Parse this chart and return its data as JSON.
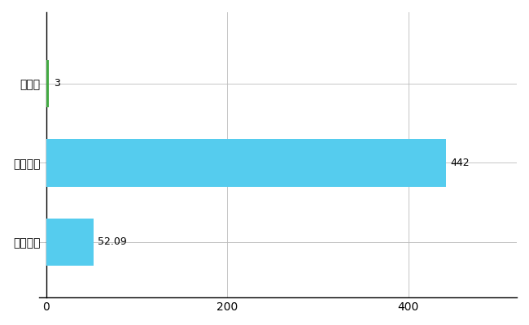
{
  "categories": [
    "全国平均",
    "全国最大",
    "秋田県"
  ],
  "values": [
    52.09,
    442,
    3
  ],
  "bar_colors": [
    "#55CCEE",
    "#55CCEE",
    "#44AA44"
  ],
  "bar_labels": [
    "52.09",
    "442",
    "3"
  ],
  "xlim": [
    -8,
    520
  ],
  "ylim": [
    -0.7,
    2.9
  ],
  "grid_color": "#BBBBBB",
  "tick_label_fontsize": 10,
  "bar_label_fontsize": 9,
  "ytick_fontsize": 11,
  "xtick_values": [
    0,
    200,
    400
  ],
  "bar_height": 0.6,
  "figsize": [
    6.5,
    4.0
  ],
  "dpi": 100
}
